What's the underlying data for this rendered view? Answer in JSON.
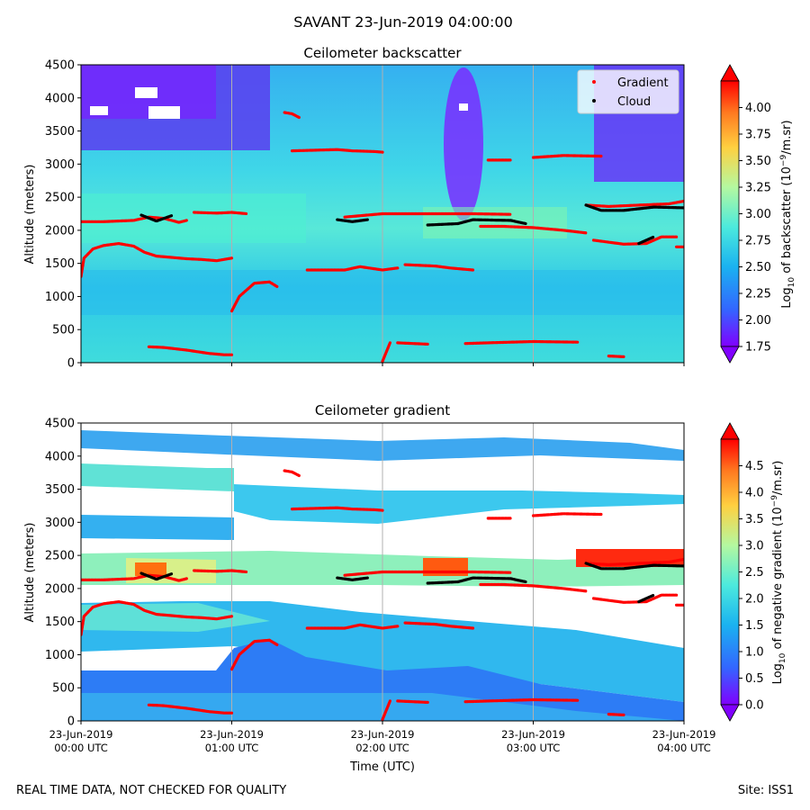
{
  "figure": {
    "suptitle": "SAVANT 23-Jun-2019 04:00:00",
    "footer_left": "REAL TIME DATA, NOT CHECKED FOR QUALITY",
    "footer_right": "Site: ISS1"
  },
  "colors": {
    "gradient_marker": "#ff0000",
    "cloud_marker": "#000000",
    "colormap": [
      "#8000ff",
      "#3366ff",
      "#1ab2f0",
      "#4ceadd",
      "#b4f8a0",
      "#ffd040",
      "#ff7a20",
      "#ff0000"
    ]
  },
  "chart_data": [
    {
      "type": "heatmap",
      "title": "Ceilometer backscatter",
      "ylabel": "Altitude (meters)",
      "ylim": [
        0,
        4500
      ],
      "yticks": [
        "0",
        "500",
        "1000",
        "1500",
        "2000",
        "2500",
        "3000",
        "3500",
        "4000",
        "4500"
      ],
      "xlim": [
        "23-Jun-2019 00:00 UTC",
        "23-Jun-2019 04:00 UTC"
      ],
      "grid": "vertical lines at hourly ticks",
      "legend": {
        "placement": "top-right",
        "entries": [
          "Gradient",
          "Cloud"
        ]
      },
      "colorbar": {
        "label": "Log10 of backscatter (10^-9/m.sr)",
        "label_parts": {
          "pre": "Log",
          "sub": "10",
          "mid": " of backscatter (10",
          "sup": "−9",
          "post": "/m.sr)"
        },
        "range": [
          1.75,
          4.25
        ],
        "ticks": [
          "1.75",
          "2.00",
          "2.25",
          "2.50",
          "2.75",
          "3.00",
          "3.25",
          "3.50",
          "3.75",
          "4.00"
        ],
        "extend": "both"
      },
      "series": [
        {
          "name": "Gradient",
          "segments": [
            [
              [
                0.0,
                1300
              ],
              [
                0.02,
                1580
              ],
              [
                0.08,
                1720
              ],
              [
                0.15,
                1770
              ],
              [
                0.25,
                1800
              ],
              [
                0.35,
                1760
              ],
              [
                0.42,
                1670
              ],
              [
                0.5,
                1610
              ],
              [
                0.6,
                1590
              ],
              [
                0.7,
                1570
              ],
              [
                0.8,
                1560
              ],
              [
                0.9,
                1540
              ],
              [
                1.0,
                1580
              ]
            ],
            [
              [
                0.0,
                2130
              ],
              [
                0.15,
                2130
              ],
              [
                0.35,
                2150
              ],
              [
                0.45,
                2200
              ],
              [
                0.55,
                2180
              ],
              [
                0.65,
                2120
              ],
              [
                0.7,
                2150
              ]
            ],
            [
              [
                0.75,
                2270
              ],
              [
                0.9,
                2260
              ],
              [
                1.0,
                2270
              ],
              [
                1.1,
                2250
              ]
            ],
            [
              [
                0.45,
                240
              ],
              [
                0.55,
                230
              ],
              [
                0.7,
                190
              ],
              [
                0.85,
                140
              ],
              [
                0.95,
                120
              ],
              [
                1.0,
                120
              ]
            ],
            [
              [
                1.0,
                780
              ],
              [
                1.05,
                1000
              ],
              [
                1.15,
                1200
              ],
              [
                1.25,
                1220
              ],
              [
                1.3,
                1150
              ]
            ],
            [
              [
                1.35,
                3780
              ],
              [
                1.4,
                3760
              ],
              [
                1.45,
                3700
              ]
            ],
            [
              [
                1.4,
                3200
              ],
              [
                1.7,
                3220
              ],
              [
                1.8,
                3200
              ],
              [
                1.95,
                3190
              ],
              [
                2.0,
                3180
              ]
            ],
            [
              [
                1.5,
                1400
              ],
              [
                1.75,
                1400
              ],
              [
                1.85,
                1450
              ],
              [
                2.0,
                1400
              ],
              [
                2.1,
                1430
              ]
            ],
            [
              [
                1.75,
                2200
              ],
              [
                2.0,
                2250
              ],
              [
                2.3,
                2250
              ],
              [
                2.6,
                2250
              ],
              [
                2.85,
                2240
              ]
            ],
            [
              [
                2.0,
                20
              ],
              [
                2.05,
                300
              ]
            ],
            [
              [
                2.15,
                1480
              ],
              [
                2.35,
                1460
              ],
              [
                2.45,
                1430
              ],
              [
                2.6,
                1400
              ]
            ],
            [
              [
                2.1,
                300
              ],
              [
                2.3,
                280
              ]
            ],
            [
              [
                2.55,
                290
              ],
              [
                2.7,
                300
              ],
              [
                3.0,
                320
              ],
              [
                3.3,
                310
              ]
            ],
            [
              [
                2.7,
                3060
              ],
              [
                2.85,
                3060
              ]
            ],
            [
              [
                3.0,
                3100
              ],
              [
                3.2,
                3130
              ],
              [
                3.45,
                3120
              ]
            ],
            [
              [
                2.65,
                2060
              ],
              [
                2.8,
                2060
              ],
              [
                3.0,
                2040
              ],
              [
                3.2,
                2000
              ],
              [
                3.35,
                1960
              ]
            ],
            [
              [
                3.35,
                2380
              ],
              [
                3.5,
                2360
              ],
              [
                3.7,
                2380
              ],
              [
                3.9,
                2400
              ],
              [
                4.0,
                2440
              ]
            ],
            [
              [
                3.4,
                1850
              ],
              [
                3.6,
                1790
              ],
              [
                3.75,
                1800
              ],
              [
                3.85,
                1900
              ],
              [
                3.95,
                1900
              ]
            ],
            [
              [
                3.5,
                100
              ],
              [
                3.6,
                90
              ]
            ],
            [
              [
                3.95,
                1750
              ],
              [
                4.0,
                1750
              ]
            ]
          ]
        },
        {
          "name": "Cloud",
          "segments": [
            [
              [
                0.4,
                2230
              ],
              [
                0.5,
                2140
              ],
              [
                0.6,
                2220
              ]
            ],
            [
              [
                1.7,
                2160
              ],
              [
                1.8,
                2130
              ],
              [
                1.9,
                2160
              ]
            ],
            [
              [
                2.3,
                2080
              ],
              [
                2.5,
                2100
              ],
              [
                2.6,
                2160
              ],
              [
                2.85,
                2150
              ],
              [
                2.95,
                2100
              ]
            ],
            [
              [
                3.35,
                2380
              ],
              [
                3.45,
                2300
              ],
              [
                3.6,
                2300
              ],
              [
                3.8,
                2350
              ],
              [
                4.0,
                2340
              ]
            ],
            [
              [
                3.7,
                1800
              ],
              [
                3.8,
                1900
              ]
            ]
          ]
        }
      ]
    },
    {
      "type": "heatmap",
      "title": "Ceilometer gradient",
      "xlabel": "Time (UTC)",
      "ylabel": "Altitude (meters)",
      "ylim": [
        0,
        4500
      ],
      "yticks": [
        "0",
        "500",
        "1000",
        "1500",
        "2000",
        "2500",
        "3000",
        "3500",
        "4000",
        "4500"
      ],
      "xlim": [
        "23-Jun-2019 00:00 UTC",
        "23-Jun-2019 04:00 UTC"
      ],
      "xticks": [
        {
          "date": "23-Jun-2019",
          "time": "00:00 UTC"
        },
        {
          "date": "23-Jun-2019",
          "time": "01:00 UTC"
        },
        {
          "date": "23-Jun-2019",
          "time": "02:00 UTC"
        },
        {
          "date": "23-Jun-2019",
          "time": "03:00 UTC"
        },
        {
          "date": "23-Jun-2019",
          "time": "04:00 UTC"
        }
      ],
      "grid": "vertical lines at hourly ticks",
      "colorbar": {
        "label": "Log10 of negative gradient (10^-9/m.sr)",
        "label_parts": {
          "pre": "Log",
          "sub": "10",
          "mid": " of negative gradient (10",
          "sup": "−9",
          "post": "/m.sr)"
        },
        "range": [
          0.0,
          5.0
        ],
        "ticks": [
          "0.0",
          "0.5",
          "1.0",
          "1.5",
          "2.0",
          "2.5",
          "3.0",
          "3.5",
          "4.0",
          "4.5"
        ],
        "extend": "both"
      }
    }
  ]
}
